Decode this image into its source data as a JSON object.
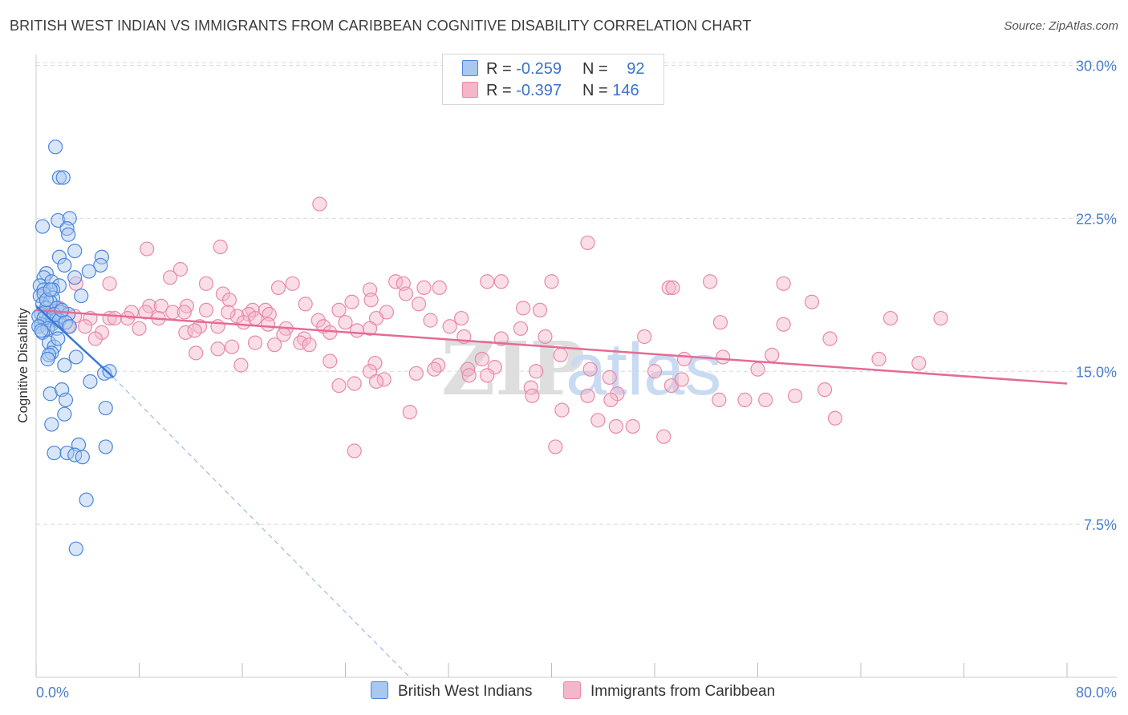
{
  "title": "BRITISH WEST INDIAN VS IMMIGRANTS FROM CARIBBEAN COGNITIVE DISABILITY CORRELATION CHART",
  "source": "Source: ZipAtlas.com",
  "watermark": {
    "zip": "ZIP",
    "atlas": "atlas"
  },
  "colors": {
    "blue_fill": "#a9c8f0",
    "blue_stroke": "#4a86dd",
    "blue_line": "#3b78d8",
    "pink_fill": "#f4b6c9",
    "pink_stroke": "#e889a8",
    "pink_line": "#e56b97",
    "tick_text": "#4a7ecb",
    "grid": "#d9d9d9"
  },
  "legend": {
    "rows": [
      {
        "r_label": "R =",
        "r_value": "-0.259",
        "n_label": "N =",
        "n_value": "92"
      },
      {
        "r_label": "R =",
        "r_value": "-0.397",
        "n_label": "N =",
        "n_value": "146"
      }
    ]
  },
  "bottom_legend": {
    "series1": "British West Indians",
    "series2": "Immigrants from Caribbean"
  },
  "chart_data": {
    "type": "scatter",
    "xlabel": "",
    "ylabel": "Cognitive Disability",
    "xlim": [
      0,
      80
    ],
    "ylim": [
      0,
      31
    ],
    "x_tick_labels": [
      "0.0%",
      "80.0%"
    ],
    "y_ticks": [
      7.5,
      15.0,
      22.5,
      30.0
    ],
    "y_tick_labels": [
      "7.5%",
      "15.0%",
      "22.5%",
      "30.0%"
    ],
    "grid": true,
    "series": [
      {
        "name": "British West Indians",
        "R": -0.259,
        "N": 92,
        "trend": {
          "x": [
            0.0,
            6.0
          ],
          "y": [
            18.2,
            14.7
          ],
          "dashed_extension": {
            "x": [
              6.0,
              29.0
            ],
            "y": [
              14.7,
              0.0
            ]
          }
        },
        "points": [
          [
            1.5,
            26.0
          ],
          [
            1.8,
            24.5
          ],
          [
            2.1,
            24.5
          ],
          [
            0.5,
            22.1
          ],
          [
            1.7,
            22.4
          ],
          [
            2.6,
            22.5
          ],
          [
            2.4,
            22.0
          ],
          [
            2.5,
            21.7
          ],
          [
            3.0,
            20.9
          ],
          [
            1.8,
            20.6
          ],
          [
            5.1,
            20.6
          ],
          [
            2.2,
            20.2
          ],
          [
            5.0,
            20.2
          ],
          [
            4.1,
            19.9
          ],
          [
            0.8,
            19.8
          ],
          [
            0.6,
            19.6
          ],
          [
            3.0,
            19.6
          ],
          [
            1.2,
            19.4
          ],
          [
            0.3,
            19.2
          ],
          [
            1.8,
            19.2
          ],
          [
            0.6,
            19.0
          ],
          [
            1.3,
            19.0
          ],
          [
            0.3,
            18.7
          ],
          [
            0.6,
            18.8
          ],
          [
            1.3,
            18.6
          ],
          [
            3.5,
            18.7
          ],
          [
            0.5,
            18.3
          ],
          [
            1.1,
            18.4
          ],
          [
            0.8,
            18.1
          ],
          [
            1.6,
            18.1
          ],
          [
            1.9,
            17.9
          ],
          [
            2.5,
            17.8
          ],
          [
            0.4,
            17.8
          ],
          [
            0.7,
            17.9
          ],
          [
            1.3,
            17.6
          ],
          [
            0.2,
            17.7
          ],
          [
            0.9,
            17.5
          ],
          [
            1.5,
            17.5
          ],
          [
            0.4,
            17.3
          ],
          [
            1.2,
            17.3
          ],
          [
            0.6,
            17.6
          ],
          [
            1.4,
            17.8
          ],
          [
            1.8,
            17.5
          ],
          [
            0.2,
            17.2
          ],
          [
            0.9,
            17.1
          ],
          [
            1.6,
            17.1
          ],
          [
            2.3,
            17.4
          ],
          [
            0.5,
            16.9
          ],
          [
            1.0,
            16.4
          ],
          [
            1.4,
            16.2
          ],
          [
            1.2,
            15.9
          ],
          [
            1.0,
            15.8
          ],
          [
            0.9,
            15.6
          ],
          [
            3.1,
            15.7
          ],
          [
            2.2,
            15.3
          ],
          [
            5.3,
            14.9
          ],
          [
            5.7,
            15.0
          ],
          [
            4.2,
            14.5
          ],
          [
            1.1,
            13.9
          ],
          [
            2.0,
            14.1
          ],
          [
            2.3,
            13.6
          ],
          [
            5.4,
            13.2
          ],
          [
            2.2,
            12.9
          ],
          [
            1.2,
            12.4
          ],
          [
            1.4,
            11.0
          ],
          [
            2.4,
            11.0
          ],
          [
            3.3,
            11.4
          ],
          [
            5.4,
            11.3
          ],
          [
            3.0,
            10.9
          ],
          [
            3.6,
            10.8
          ],
          [
            3.9,
            8.7
          ],
          [
            3.1,
            6.3
          ],
          [
            0.4,
            17.0
          ],
          [
            1.7,
            16.6
          ],
          [
            2.6,
            17.2
          ],
          [
            0.8,
            18.5
          ],
          [
            2.0,
            18.0
          ],
          [
            1.1,
            19.0
          ]
        ]
      },
      {
        "name": "Immigrants from Caribbean",
        "R": -0.397,
        "N": 146,
        "trend": {
          "x": [
            0.0,
            80.0
          ],
          "y": [
            18.0,
            14.4
          ]
        },
        "points": [
          [
            22.0,
            23.2
          ],
          [
            42.8,
            21.3
          ],
          [
            14.3,
            21.1
          ],
          [
            8.6,
            21.0
          ],
          [
            11.2,
            20.0
          ],
          [
            10.4,
            19.6
          ],
          [
            13.2,
            19.3
          ],
          [
            5.7,
            19.3
          ],
          [
            19.9,
            19.3
          ],
          [
            27.9,
            19.4
          ],
          [
            36.1,
            19.4
          ],
          [
            40.0,
            19.4
          ],
          [
            28.5,
            19.3
          ],
          [
            30.1,
            19.1
          ],
          [
            31.3,
            19.1
          ],
          [
            35.0,
            19.4
          ],
          [
            3.1,
            19.3
          ],
          [
            18.8,
            19.1
          ],
          [
            25.9,
            19.0
          ],
          [
            49.1,
            19.1
          ],
          [
            14.5,
            18.8
          ],
          [
            28.7,
            18.8
          ],
          [
            26.0,
            18.5
          ],
          [
            24.5,
            18.4
          ],
          [
            20.9,
            18.3
          ],
          [
            29.7,
            18.3
          ],
          [
            15.0,
            18.5
          ],
          [
            8.8,
            18.2
          ],
          [
            9.7,
            18.2
          ],
          [
            11.7,
            18.2
          ],
          [
            16.8,
            18.0
          ],
          [
            17.8,
            18.0
          ],
          [
            1.8,
            18.1
          ],
          [
            7.4,
            17.9
          ],
          [
            8.5,
            17.9
          ],
          [
            10.6,
            17.9
          ],
          [
            11.5,
            17.9
          ],
          [
            13.2,
            18.0
          ],
          [
            16.5,
            17.8
          ],
          [
            18.1,
            17.8
          ],
          [
            23.5,
            18.0
          ],
          [
            27.2,
            17.9
          ],
          [
            37.8,
            18.1
          ],
          [
            39.1,
            18.0
          ],
          [
            3.0,
            17.7
          ],
          [
            4.2,
            17.6
          ],
          [
            5.7,
            17.6
          ],
          [
            6.1,
            17.6
          ],
          [
            7.1,
            17.6
          ],
          [
            9.5,
            17.6
          ],
          [
            15.6,
            17.7
          ],
          [
            17.0,
            17.6
          ],
          [
            21.9,
            17.5
          ],
          [
            26.4,
            17.6
          ],
          [
            30.6,
            17.5
          ],
          [
            33.0,
            17.6
          ],
          [
            24.0,
            17.4
          ],
          [
            18.0,
            17.3
          ],
          [
            3.8,
            17.2
          ],
          [
            8.0,
            17.1
          ],
          [
            12.7,
            17.2
          ],
          [
            14.1,
            17.2
          ],
          [
            16.1,
            17.4
          ],
          [
            19.4,
            17.1
          ],
          [
            22.3,
            17.2
          ],
          [
            25.9,
            17.1
          ],
          [
            32.1,
            17.2
          ],
          [
            37.6,
            17.1
          ],
          [
            2.5,
            17.2
          ],
          [
            5.1,
            16.9
          ],
          [
            11.6,
            16.9
          ],
          [
            12.3,
            17.0
          ],
          [
            22.8,
            16.9
          ],
          [
            19.2,
            16.8
          ],
          [
            24.9,
            17.0
          ],
          [
            33.2,
            16.7
          ],
          [
            39.5,
            16.7
          ],
          [
            36.1,
            16.6
          ],
          [
            47.2,
            16.7
          ],
          [
            4.6,
            16.6
          ],
          [
            20.8,
            16.6
          ],
          [
            20.5,
            16.4
          ],
          [
            18.5,
            16.3
          ],
          [
            17.0,
            16.4
          ],
          [
            21.2,
            16.3
          ],
          [
            15.2,
            16.2
          ],
          [
            14.1,
            16.1
          ],
          [
            12.4,
            15.9
          ],
          [
            34.6,
            15.6
          ],
          [
            40.7,
            15.8
          ],
          [
            50.3,
            15.6
          ],
          [
            15.9,
            15.3
          ],
          [
            26.3,
            15.4
          ],
          [
            31.2,
            15.3
          ],
          [
            33.5,
            15.1
          ],
          [
            35.6,
            15.2
          ],
          [
            22.8,
            15.5
          ],
          [
            38.8,
            15.0
          ],
          [
            43.0,
            15.1
          ],
          [
            48.0,
            15.0
          ],
          [
            53.3,
            15.7
          ],
          [
            57.1,
            15.8
          ],
          [
            61.6,
            16.6
          ],
          [
            65.4,
            15.6
          ],
          [
            68.5,
            15.4
          ],
          [
            56.0,
            15.1
          ],
          [
            30.9,
            15.1
          ],
          [
            25.9,
            15.0
          ],
          [
            29.5,
            14.9
          ],
          [
            33.6,
            14.8
          ],
          [
            35.0,
            14.8
          ],
          [
            27.0,
            14.6
          ],
          [
            26.4,
            14.5
          ],
          [
            24.7,
            14.4
          ],
          [
            23.5,
            14.3
          ],
          [
            38.4,
            14.2
          ],
          [
            44.5,
            14.7
          ],
          [
            38.5,
            13.8
          ],
          [
            45.1,
            13.9
          ],
          [
            53.0,
            13.6
          ],
          [
            49.3,
            14.3
          ],
          [
            50.1,
            14.6
          ],
          [
            55.0,
            13.6
          ],
          [
            56.6,
            13.6
          ],
          [
            58.9,
            13.8
          ],
          [
            61.2,
            14.1
          ],
          [
            42.8,
            13.8
          ],
          [
            44.6,
            13.6
          ],
          [
            29.0,
            13.0
          ],
          [
            40.8,
            13.1
          ],
          [
            43.6,
            12.6
          ],
          [
            45.0,
            12.3
          ],
          [
            46.3,
            12.3
          ],
          [
            48.7,
            11.8
          ],
          [
            40.3,
            11.3
          ],
          [
            24.7,
            11.1
          ],
          [
            58.0,
            19.3
          ],
          [
            66.3,
            17.6
          ],
          [
            58.0,
            17.3
          ],
          [
            60.2,
            18.4
          ],
          [
            49.4,
            19.1
          ],
          [
            62.0,
            12.7
          ],
          [
            53.1,
            17.4
          ],
          [
            14.9,
            17.9
          ],
          [
            70.2,
            17.6
          ],
          [
            52.3,
            19.4
          ]
        ]
      }
    ]
  }
}
